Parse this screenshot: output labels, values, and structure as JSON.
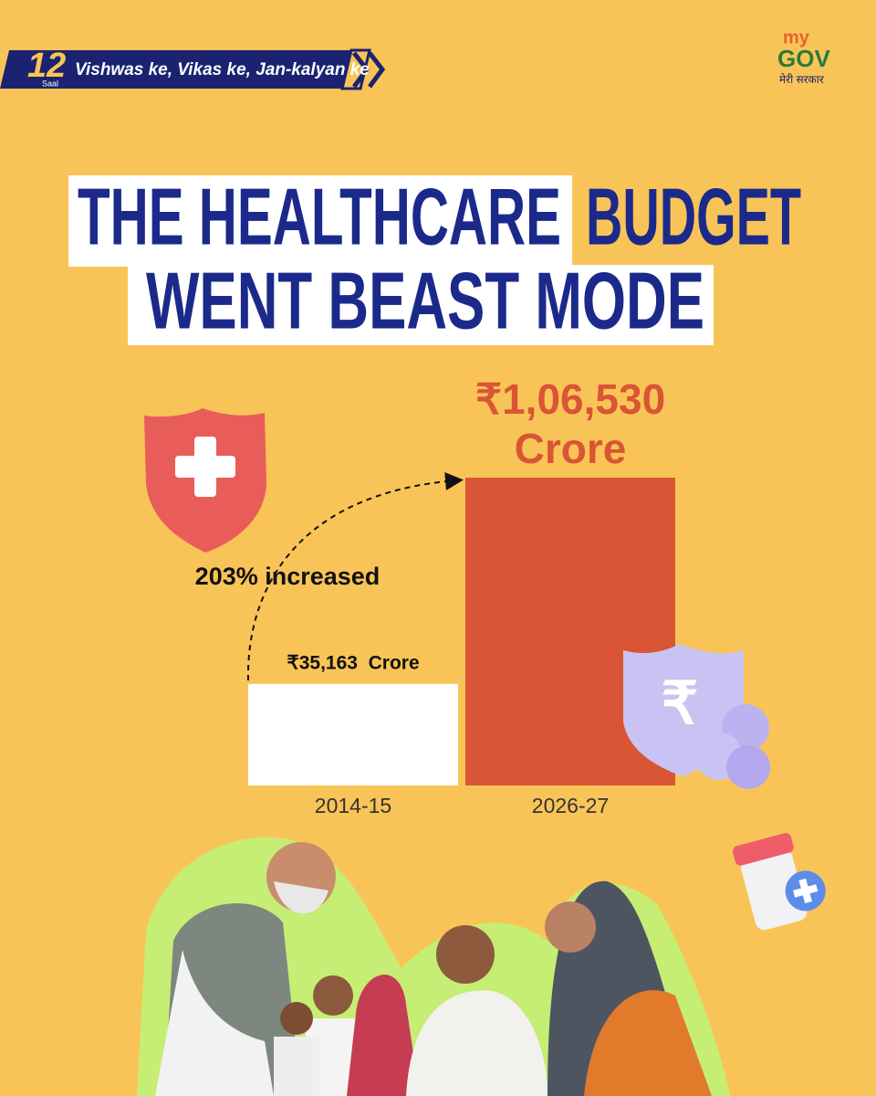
{
  "header": {
    "badge_number": "12",
    "badge_word": "Saal",
    "tagline": "Vishwas ke, Vikas ke, Jan-kalyan ke"
  },
  "logo": {
    "my": "my",
    "gov": "GOV",
    "hindi": "मेरी सरकार"
  },
  "chart_data": {
    "type": "bar",
    "title_parts": [
      "THE HEALTHCARE",
      "BUDGET",
      "WENT BEAST MODE"
    ],
    "annotation": "203% increased",
    "categories": [
      "2014-15",
      "2026-27"
    ],
    "values": [
      35163,
      106530
    ],
    "value_labels": [
      "₹35,163  Crore",
      "₹1,06,530 Crore"
    ],
    "colors": [
      "#ffffff",
      "#d95535"
    ]
  }
}
